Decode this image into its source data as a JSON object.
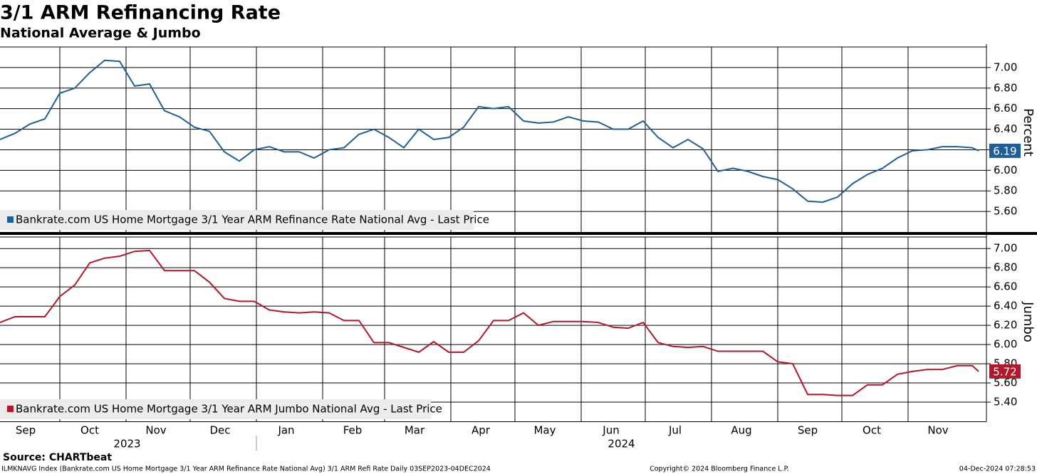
{
  "chart_data": [
    {
      "type": "line",
      "title": "3/1 ARM Refinancing Rate",
      "subtitle": "National Average & Jumbo",
      "x": [
        "2023-09-03",
        "2023-09-10",
        "2023-09-17",
        "2023-09-24",
        "2023-10-01",
        "2023-10-08",
        "2023-10-15",
        "2023-10-22",
        "2023-10-29",
        "2023-11-05",
        "2023-11-12",
        "2023-11-19",
        "2023-11-26",
        "2023-12-03",
        "2023-12-10",
        "2023-12-17",
        "2023-12-24",
        "2023-12-31",
        "2024-01-07",
        "2024-01-14",
        "2024-01-21",
        "2024-01-28",
        "2024-02-04",
        "2024-02-11",
        "2024-02-18",
        "2024-02-25",
        "2024-03-03",
        "2024-03-10",
        "2024-03-17",
        "2024-03-24",
        "2024-03-31",
        "2024-04-07",
        "2024-04-14",
        "2024-04-21",
        "2024-04-28",
        "2024-05-05",
        "2024-05-12",
        "2024-05-19",
        "2024-05-26",
        "2024-06-02",
        "2024-06-09",
        "2024-06-16",
        "2024-06-23",
        "2024-06-30",
        "2024-07-07",
        "2024-07-14",
        "2024-07-21",
        "2024-07-28",
        "2024-08-04",
        "2024-08-11",
        "2024-08-18",
        "2024-08-25",
        "2024-09-01",
        "2024-09-08",
        "2024-09-15",
        "2024-09-22",
        "2024-09-29",
        "2024-10-06",
        "2024-10-13",
        "2024-10-20",
        "2024-10-27",
        "2024-11-03",
        "2024-11-10",
        "2024-11-17",
        "2024-11-24",
        "2024-12-01",
        "2024-12-04"
      ],
      "xlim": [
        "2023-09-03",
        "2024-12-04"
      ],
      "series": [
        {
          "name": "Bankrate.com US Home Mortgage 3/1 Year ARM Refinance Rate National Avg - Last Price",
          "color": "#1f5f99",
          "values": [
            6.3,
            6.36,
            6.45,
            6.5,
            6.75,
            6.8,
            6.95,
            7.07,
            7.06,
            6.82,
            6.84,
            6.58,
            6.52,
            6.42,
            6.38,
            6.18,
            6.09,
            6.2,
            6.23,
            6.18,
            6.18,
            6.12,
            6.2,
            6.22,
            6.35,
            6.4,
            6.32,
            6.22,
            6.4,
            6.3,
            6.32,
            6.42,
            6.62,
            6.6,
            6.62,
            6.48,
            6.46,
            6.47,
            6.52,
            6.48,
            6.47,
            6.4,
            6.4,
            6.48,
            6.32,
            6.22,
            6.3,
            6.21,
            5.99,
            6.02,
            5.99,
            5.94,
            5.91,
            5.82,
            5.7,
            5.69,
            5.74,
            5.87,
            5.96,
            6.02,
            6.12,
            6.19,
            6.2,
            6.23,
            6.23,
            6.22,
            6.19
          ]
        }
      ],
      "ylim": [
        5.4,
        7.2
      ],
      "yticks": [
        {
          "value": 5.6,
          "label": "5.60"
        },
        {
          "value": 5.8,
          "label": "5.80"
        },
        {
          "value": 6.0,
          "label": "6.00"
        },
        {
          "value": 6.2,
          "label": "6.20"
        },
        {
          "value": 6.4,
          "label": "6.40"
        },
        {
          "value": 6.6,
          "label": "6.60"
        },
        {
          "value": 6.8,
          "label": "6.80"
        },
        {
          "value": 7.0,
          "label": "7.00"
        }
      ],
      "y_label": "Percent",
      "grid": true
    },
    {
      "type": "line",
      "x": [
        "2023-09-03",
        "2023-09-10",
        "2023-09-17",
        "2023-09-24",
        "2023-10-01",
        "2023-10-08",
        "2023-10-15",
        "2023-10-22",
        "2023-10-29",
        "2023-11-05",
        "2023-11-12",
        "2023-11-19",
        "2023-11-26",
        "2023-12-03",
        "2023-12-10",
        "2023-12-17",
        "2023-12-24",
        "2023-12-31",
        "2024-01-07",
        "2024-01-14",
        "2024-01-21",
        "2024-01-28",
        "2024-02-04",
        "2024-02-11",
        "2024-02-18",
        "2024-02-25",
        "2024-03-03",
        "2024-03-10",
        "2024-03-17",
        "2024-03-24",
        "2024-03-31",
        "2024-04-07",
        "2024-04-14",
        "2024-04-21",
        "2024-04-28",
        "2024-05-05",
        "2024-05-12",
        "2024-05-19",
        "2024-05-26",
        "2024-06-02",
        "2024-06-09",
        "2024-06-16",
        "2024-06-23",
        "2024-06-30",
        "2024-07-07",
        "2024-07-14",
        "2024-07-21",
        "2024-07-28",
        "2024-08-04",
        "2024-08-11",
        "2024-08-18",
        "2024-08-25",
        "2024-09-01",
        "2024-09-08",
        "2024-09-15",
        "2024-09-22",
        "2024-09-29",
        "2024-10-06",
        "2024-10-13",
        "2024-10-20",
        "2024-10-27",
        "2024-11-03",
        "2024-11-10",
        "2024-11-17",
        "2024-11-24",
        "2024-12-01",
        "2024-12-04"
      ],
      "xlim": [
        "2023-09-03",
        "2024-12-04"
      ],
      "series": [
        {
          "name": "Bankrate.com US Home Mortgage 3/1 Year ARM Jumbo National Avg - Last Price",
          "color": "#b2182b",
          "values": [
            6.23,
            6.29,
            6.29,
            6.29,
            6.5,
            6.62,
            6.85,
            6.9,
            6.92,
            6.97,
            6.98,
            6.77,
            6.77,
            6.77,
            6.65,
            6.48,
            6.45,
            6.45,
            6.36,
            6.34,
            6.33,
            6.34,
            6.33,
            6.25,
            6.25,
            6.02,
            6.02,
            5.97,
            5.92,
            6.03,
            5.92,
            5.92,
            6.04,
            6.25,
            6.25,
            6.33,
            6.2,
            6.24,
            6.24,
            6.24,
            6.23,
            6.18,
            6.17,
            6.23,
            6.02,
            5.98,
            5.97,
            5.98,
            5.93,
            5.93,
            5.93,
            5.93,
            5.82,
            5.8,
            5.48,
            5.48,
            5.47,
            5.47,
            5.58,
            5.58,
            5.69,
            5.72,
            5.74,
            5.74,
            5.78,
            5.78,
            5.72
          ]
        }
      ],
      "ylim": [
        5.2,
        7.12
      ],
      "yticks": [
        {
          "value": 5.4,
          "label": "5.40"
        },
        {
          "value": 5.6,
          "label": "5.60"
        },
        {
          "value": 5.8,
          "label": "5.80"
        },
        {
          "value": 6.0,
          "label": "6.00"
        },
        {
          "value": 6.2,
          "label": "6.20"
        },
        {
          "value": 6.4,
          "label": "6.40"
        },
        {
          "value": 6.6,
          "label": "6.60"
        },
        {
          "value": 6.8,
          "label": "6.80"
        },
        {
          "value": 7.0,
          "label": "7.00"
        }
      ],
      "y_label": "Jumbo",
      "grid": true,
      "xticks": [
        {
          "value": "2023-09",
          "label": "Sep"
        },
        {
          "value": "2023-10",
          "label": "Oct"
        },
        {
          "value": "2023-11",
          "label": "Nov"
        },
        {
          "value": "2023-12",
          "label": "Dec"
        },
        {
          "value": "2024-01",
          "label": "Jan"
        },
        {
          "value": "2024-02",
          "label": "Feb"
        },
        {
          "value": "2024-03",
          "label": "Mar"
        },
        {
          "value": "2024-04",
          "label": "Apr"
        },
        {
          "value": "2024-05",
          "label": "May"
        },
        {
          "value": "2024-06",
          "label": "Jun"
        },
        {
          "value": "2024-07",
          "label": "Jul"
        },
        {
          "value": "2024-08",
          "label": "Aug"
        },
        {
          "value": "2024-09",
          "label": "Sep"
        },
        {
          "value": "2024-10",
          "label": "Oct"
        },
        {
          "value": "2024-11",
          "label": "Nov"
        }
      ],
      "years": [
        "2023",
        "2024"
      ]
    }
  ],
  "footer": {
    "source": "Source: CHARTbeat",
    "description": "ILMKNAVG Index (Bankrate.com US Home Mortgage 3/1 Year ARM Refinance Rate National Avg) 3/1 ARM Refi Rate  Daily 03SEP2023-04DEC2024",
    "copyright": "Copyright© 2024 Bloomberg Finance L.P.",
    "timestamp": "04-Dec-2024 07:28:53"
  }
}
